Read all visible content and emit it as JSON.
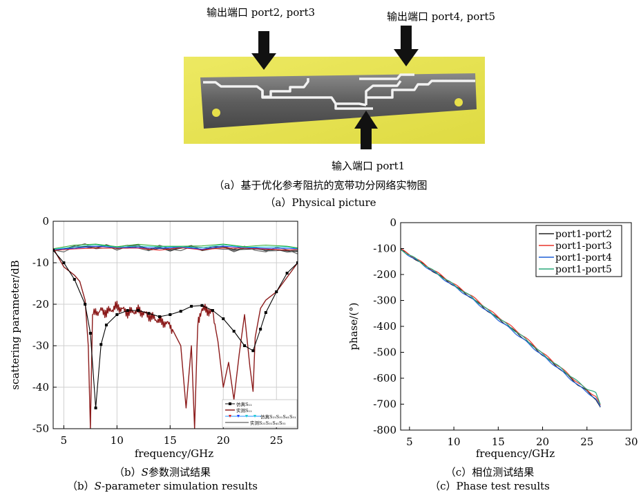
{
  "photo": {
    "label_out23": "输出端口 port2, port3",
    "label_out45": "输出端口 port4, port5",
    "label_in": "输入端口 port1",
    "caption_cn": "（a）基于优化参考阻抗的宽带功分网络实物图",
    "caption_en": "（a）Physical picture",
    "colors": {
      "board": "#e9e64e",
      "substrate": "#6a6a6a",
      "trace": "#f2f2f2",
      "arrow": "#111111"
    }
  },
  "charts": {
    "b": {
      "caption_cn": "（b）S参数测试结果",
      "caption_cn_pre": "（b）",
      "caption_cn_italic": "S",
      "caption_cn_post": "参数测试结果",
      "caption_en": "（b）S-parameter simulation results",
      "caption_en_pre": "（b）",
      "caption_en_italic": "S",
      "caption_en_post": "-parameter simulation results",
      "xlabel": "frequency/GHz",
      "ylabel": "scattering parameter/dB",
      "xticks": [
        "5",
        "10",
        "15",
        "20",
        "25"
      ],
      "yticks": [
        "0",
        "-10",
        "-20",
        "-30",
        "-40",
        "-50"
      ],
      "legend": {
        "sim_s11": "仿真S₁₁",
        "meas_s11": "实测S₁₁",
        "sim_s21": "仿真S₂₁S₃₁S₄₁S₅₁",
        "meas_s21": "实测S₂₁S₃₁S₄₁S₅₁"
      }
    },
    "c": {
      "caption_cn": "（c）相位测试结果",
      "caption_en": "（c）Phase test results",
      "xlabel": "frequency/GHz",
      "ylabel": "phase/(°)",
      "xticks": [
        "5",
        "10",
        "15",
        "20",
        "25",
        "30"
      ],
      "yticks": [
        "0",
        "-100",
        "-200",
        "-300",
        "-400",
        "-500",
        "-600",
        "-700",
        "-800"
      ],
      "legend": [
        "port1-port2",
        "port1-port3",
        "port1-port4",
        "port1-port5"
      ]
    }
  },
  "chart_data": [
    {
      "type": "line",
      "xlabel": "frequency/GHz",
      "ylabel": "scattering parameter/dB",
      "xlim": [
        4,
        27
      ],
      "ylim": [
        -50,
        0
      ],
      "grid": true,
      "legend_position": "bottom-right",
      "series": [
        {
          "name": "仿真S₁₁",
          "color": "#000000",
          "marker": "square",
          "x": [
            4,
            5,
            6,
            7,
            7.5,
            8,
            8.5,
            9,
            10,
            11,
            12,
            13,
            14,
            15,
            16,
            17,
            18,
            19,
            20,
            21,
            22,
            22.8,
            23.5,
            24,
            25,
            26,
            27
          ],
          "y": [
            -7,
            -10,
            -14,
            -20,
            -27,
            -45,
            -29.7,
            -25,
            -22.5,
            -21.5,
            -21.5,
            -22.2,
            -23,
            -22.5,
            -21.7,
            -20.5,
            -20.3,
            -21.5,
            -23.5,
            -26.5,
            -30,
            -31.2,
            -26,
            -22,
            -17,
            -12.5,
            -10
          ]
        },
        {
          "name": "实测S₁₁",
          "color": "#8b1a1a",
          "x": [
            4,
            5,
            6,
            6.5,
            7,
            7.3,
            7.5,
            7.7,
            8.5,
            9,
            10,
            11,
            12,
            13,
            14,
            15,
            16,
            16.5,
            17,
            17.3,
            17.6,
            18,
            19,
            19.5,
            20,
            20.5,
            21,
            21.5,
            22,
            22.5,
            22.8,
            23,
            23.5,
            24,
            25,
            26,
            27
          ],
          "y": [
            -6.5,
            -11,
            -13,
            -14.5,
            -19,
            -30,
            -50,
            -22.5,
            -21.5,
            -22,
            -20.5,
            -22,
            -21.5,
            -22.8,
            -24,
            -25,
            -30,
            -45,
            -30,
            -50,
            -24,
            -21,
            -22,
            -29,
            -40,
            -34,
            -43,
            -32,
            -22.5,
            -35,
            -41,
            -28,
            -21,
            -19,
            -17,
            -13.5,
            -10
          ]
        },
        {
          "name": "仿真S₂₁S₃₁S₄₁S₅₁",
          "color": "#1e90ff",
          "x": [
            4,
            6,
            8,
            10,
            12,
            14,
            16,
            18,
            20,
            22,
            24,
            26,
            27
          ],
          "y": [
            -6.8,
            -6.2,
            -6.0,
            -6.3,
            -6.0,
            -6.5,
            -6.2,
            -6.4,
            -6.0,
            -6.3,
            -6.2,
            -6.5,
            -6.6
          ]
        },
        {
          "name": "实测S₂₁S₃₁S₄₁S₅₁",
          "color": "#3a3a3a",
          "x": [
            4,
            5,
            6,
            7,
            8,
            9,
            10,
            11,
            12,
            13,
            14,
            15,
            16,
            17,
            18,
            19,
            20,
            21,
            22,
            23,
            24,
            25,
            26,
            27
          ],
          "y": [
            -7,
            -6.8,
            -6.2,
            -6.0,
            -6.4,
            -5.9,
            -6.6,
            -6.2,
            -6.0,
            -6.8,
            -6.3,
            -6.9,
            -6.5,
            -6.1,
            -6.9,
            -6.4,
            -6.2,
            -7.0,
            -6.5,
            -6.6,
            -7.0,
            -6.8,
            -7.1,
            -7.3
          ]
        }
      ]
    },
    {
      "type": "line",
      "xlabel": "frequency/GHz",
      "ylabel": "phase/(°)",
      "xlim": [
        4,
        30
      ],
      "ylim": [
        -800,
        0
      ],
      "grid": false,
      "legend_position": "top-right",
      "series": [
        {
          "name": "port1-port2",
          "color": "#222222",
          "x": [
            4,
            5,
            6,
            8,
            10,
            12,
            14,
            16,
            18,
            20,
            22,
            24,
            25,
            26,
            26.5
          ],
          "y": [
            -105,
            -125,
            -148,
            -195,
            -242,
            -290,
            -345,
            -395,
            -450,
            -510,
            -565,
            -625,
            -650,
            -680,
            -712
          ]
        },
        {
          "name": "port1-port3",
          "color": "#e8332a",
          "x": [
            4,
            5,
            6,
            8,
            10,
            12,
            14,
            16,
            18,
            20,
            22,
            24,
            25,
            26,
            26.5
          ],
          "y": [
            -103,
            -122,
            -145,
            -190,
            -237,
            -283,
            -338,
            -388,
            -442,
            -503,
            -558,
            -618,
            -645,
            -670,
            -705
          ]
        },
        {
          "name": "port1-port4",
          "color": "#1f5fd6",
          "x": [
            4,
            5,
            6,
            8,
            10,
            12,
            14,
            16,
            18,
            20,
            22,
            24,
            25,
            26,
            26.5
          ],
          "y": [
            -106,
            -127,
            -150,
            -197,
            -245,
            -293,
            -348,
            -400,
            -455,
            -513,
            -568,
            -628,
            -652,
            -682,
            -710
          ]
        },
        {
          "name": "port1-port5",
          "color": "#2aa87a",
          "x": [
            4,
            5,
            6,
            8,
            10,
            12,
            14,
            16,
            18,
            20,
            22,
            24,
            25,
            26,
            26.5
          ],
          "y": [
            -104,
            -124,
            -147,
            -193,
            -240,
            -287,
            -342,
            -393,
            -447,
            -507,
            -560,
            -615,
            -640,
            -658,
            -700
          ]
        }
      ]
    }
  ]
}
